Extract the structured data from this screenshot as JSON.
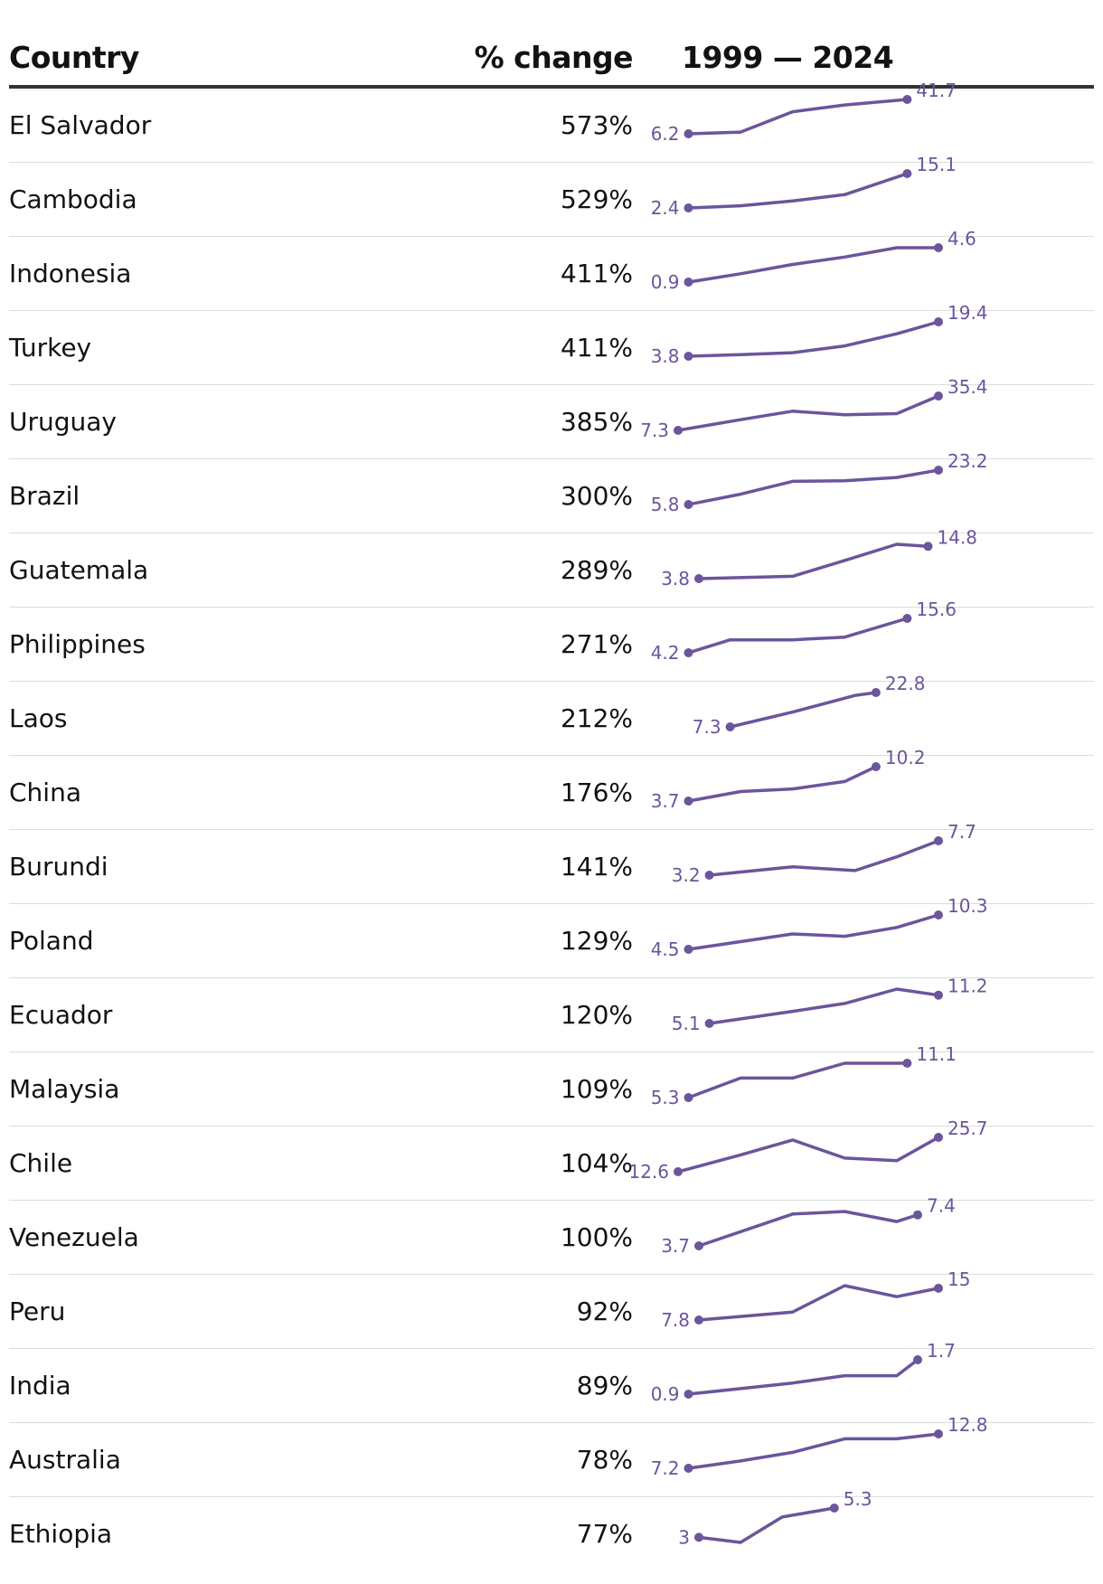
{
  "header": {
    "country": "Country",
    "change": "% change",
    "range": "1999 — 2024"
  },
  "chart_data": {
    "type": "table",
    "columns": [
      "Country",
      "% change",
      "1999 — 2024"
    ],
    "x_range": [
      1999,
      2024
    ],
    "line_color": "#6b559c",
    "rows": [
      {
        "country": "El Salvador",
        "change": "573%",
        "start_label": "6.2",
        "end_label": "41.7",
        "points": [
          [
            2000,
            6.2
          ],
          [
            2005,
            8.0
          ],
          [
            2010,
            29.0
          ],
          [
            2015,
            36.0
          ],
          [
            2021,
            41.7
          ]
        ]
      },
      {
        "country": "Cambodia",
        "change": "529%",
        "start_label": "2.4",
        "end_label": "15.1",
        "points": [
          [
            2000,
            2.4
          ],
          [
            2005,
            3.2
          ],
          [
            2010,
            5.0
          ],
          [
            2015,
            7.3
          ],
          [
            2021,
            15.1
          ]
        ]
      },
      {
        "country": "Indonesia",
        "change": "411%",
        "start_label": "0.9",
        "end_label": "4.6",
        "points": [
          [
            2000,
            0.9
          ],
          [
            2005,
            1.8
          ],
          [
            2010,
            2.8
          ],
          [
            2015,
            3.6
          ],
          [
            2020,
            4.6
          ],
          [
            2024,
            4.6
          ]
        ]
      },
      {
        "country": "Turkey",
        "change": "411%",
        "start_label": "3.8",
        "end_label": "19.4",
        "points": [
          [
            2000,
            3.8
          ],
          [
            2005,
            4.5
          ],
          [
            2010,
            5.4
          ],
          [
            2015,
            8.5
          ],
          [
            2020,
            14.0
          ],
          [
            2024,
            19.4
          ]
        ]
      },
      {
        "country": "Uruguay",
        "change": "385%",
        "start_label": "7.3",
        "end_label": "35.4",
        "points": [
          [
            1999,
            7.3
          ],
          [
            2005,
            16.0
          ],
          [
            2010,
            23.0
          ],
          [
            2015,
            20.0
          ],
          [
            2020,
            21.0
          ],
          [
            2024,
            35.4
          ]
        ]
      },
      {
        "country": "Brazil",
        "change": "300%",
        "start_label": "5.8",
        "end_label": "23.2",
        "points": [
          [
            2000,
            5.8
          ],
          [
            2005,
            11.0
          ],
          [
            2010,
            17.5
          ],
          [
            2015,
            17.8
          ],
          [
            2020,
            19.5
          ],
          [
            2024,
            23.2
          ]
        ]
      },
      {
        "country": "Guatemala",
        "change": "289%",
        "start_label": "3.8",
        "end_label": "14.8",
        "points": [
          [
            2001,
            3.8
          ],
          [
            2010,
            4.6
          ],
          [
            2015,
            10.0
          ],
          [
            2020,
            15.5
          ],
          [
            2023,
            14.8
          ]
        ]
      },
      {
        "country": "Philippines",
        "change": "271%",
        "start_label": "4.2",
        "end_label": "15.6",
        "points": [
          [
            2000,
            4.2
          ],
          [
            2004,
            8.5
          ],
          [
            2010,
            8.5
          ],
          [
            2015,
            9.4
          ],
          [
            2021,
            15.6
          ]
        ]
      },
      {
        "country": "Laos",
        "change": "212%",
        "start_label": "7.3",
        "end_label": "22.8",
        "points": [
          [
            2004,
            7.3
          ],
          [
            2010,
            14.0
          ],
          [
            2016,
            21.5
          ],
          [
            2018,
            22.8
          ]
        ]
      },
      {
        "country": "China",
        "change": "176%",
        "start_label": "3.7",
        "end_label": "10.2",
        "points": [
          [
            2000,
            3.7
          ],
          [
            2005,
            5.5
          ],
          [
            2010,
            6.0
          ],
          [
            2015,
            7.4
          ],
          [
            2018,
            10.2
          ]
        ]
      },
      {
        "country": "Burundi",
        "change": "141%",
        "start_label": "3.2",
        "end_label": "7.7",
        "points": [
          [
            2002,
            3.2
          ],
          [
            2010,
            4.3
          ],
          [
            2016,
            3.8
          ],
          [
            2020,
            5.6
          ],
          [
            2024,
            7.7
          ]
        ]
      },
      {
        "country": "Poland",
        "change": "129%",
        "start_label": "4.5",
        "end_label": "10.3",
        "points": [
          [
            2000,
            4.5
          ],
          [
            2005,
            5.8
          ],
          [
            2010,
            7.1
          ],
          [
            2015,
            6.7
          ],
          [
            2020,
            8.2
          ],
          [
            2024,
            10.3
          ]
        ]
      },
      {
        "country": "Ecuador",
        "change": "120%",
        "start_label": "5.1",
        "end_label": "11.2",
        "points": [
          [
            2002,
            5.1
          ],
          [
            2010,
            7.7
          ],
          [
            2015,
            9.4
          ],
          [
            2020,
            12.5
          ],
          [
            2024,
            11.2
          ]
        ]
      },
      {
        "country": "Malaysia",
        "change": "109%",
        "start_label": "5.3",
        "end_label": "11.1",
        "points": [
          [
            2000,
            5.3
          ],
          [
            2005,
            8.6
          ],
          [
            2010,
            8.6
          ],
          [
            2015,
            11.1
          ],
          [
            2021,
            11.1
          ]
        ]
      },
      {
        "country": "Chile",
        "change": "104%",
        "start_label": "12.6",
        "end_label": "25.7",
        "points": [
          [
            1999,
            12.6
          ],
          [
            2005,
            19.0
          ],
          [
            2010,
            24.7
          ],
          [
            2015,
            17.8
          ],
          [
            2020,
            16.8
          ],
          [
            2024,
            25.7
          ]
        ]
      },
      {
        "country": "Venezuela",
        "change": "100%",
        "start_label": "3.7",
        "end_label": "7.4",
        "points": [
          [
            2001,
            3.7
          ],
          [
            2010,
            7.5
          ],
          [
            2015,
            7.8
          ],
          [
            2020,
            6.6
          ],
          [
            2022,
            7.4
          ]
        ]
      },
      {
        "country": "Peru",
        "change": "92%",
        "start_label": "7.8",
        "end_label": "15",
        "points": [
          [
            2001,
            7.8
          ],
          [
            2010,
            9.6
          ],
          [
            2015,
            15.6
          ],
          [
            2020,
            13.1
          ],
          [
            2024,
            15.0
          ]
        ]
      },
      {
        "country": "India",
        "change": "89%",
        "start_label": "0.9",
        "end_label": "1.7",
        "points": [
          [
            2000,
            0.9
          ],
          [
            2010,
            1.16
          ],
          [
            2015,
            1.33
          ],
          [
            2020,
            1.33
          ],
          [
            2022,
            1.7
          ]
        ]
      },
      {
        "country": "Australia",
        "change": "78%",
        "start_label": "7.2",
        "end_label": "12.8",
        "points": [
          [
            2000,
            7.2
          ],
          [
            2005,
            8.4
          ],
          [
            2010,
            9.8
          ],
          [
            2015,
            12.0
          ],
          [
            2020,
            12.0
          ],
          [
            2024,
            12.8
          ]
        ]
      },
      {
        "country": "Ethiopia",
        "change": "77%",
        "start_label": "3",
        "end_label": "5.3",
        "points": [
          [
            2001,
            3.0
          ],
          [
            2005,
            2.6
          ],
          [
            2009,
            4.6
          ],
          [
            2014,
            5.3
          ]
        ]
      }
    ]
  }
}
